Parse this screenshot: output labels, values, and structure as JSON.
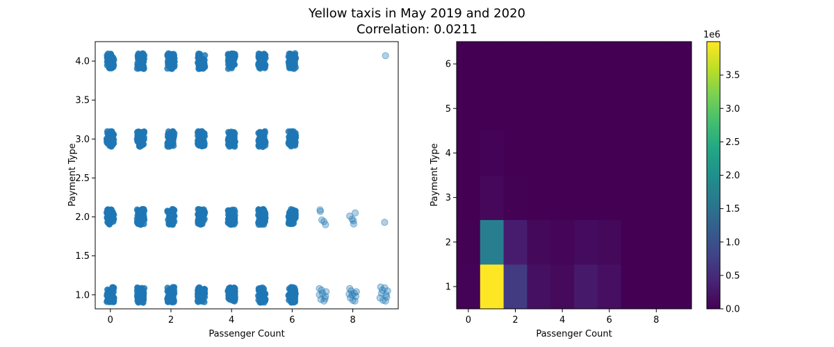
{
  "figure": {
    "title_line1": "Yellow taxis in May 2019 and 2020",
    "title_line2": "Correlation: 0.0211"
  },
  "chart_data": [
    {
      "type": "scatter",
      "xlabel": "Passenger Count",
      "ylabel": "Payment Type",
      "xlim": [
        -0.5,
        9.5
      ],
      "ylim": [
        0.82,
        4.25
      ],
      "xticks": [
        "0",
        "2",
        "4",
        "6",
        "8"
      ],
      "xtick_values": [
        0,
        2,
        4,
        6,
        8
      ],
      "yticks": [
        "1.0",
        "1.5",
        "2.0",
        "2.5",
        "3.0",
        "3.5",
        "4.0"
      ],
      "ytick_values": [
        1.0,
        1.5,
        2.0,
        2.5,
        3.0,
        3.5,
        4.0
      ],
      "marker_color": "#1f77b4",
      "alpha": 0.35,
      "dense_clusters": [
        {
          "x": 0,
          "y": 1
        },
        {
          "x": 1,
          "y": 1
        },
        {
          "x": 2,
          "y": 1
        },
        {
          "x": 3,
          "y": 1
        },
        {
          "x": 4,
          "y": 1
        },
        {
          "x": 5,
          "y": 1
        },
        {
          "x": 6,
          "y": 1
        },
        {
          "x": 0,
          "y": 2
        },
        {
          "x": 1,
          "y": 2
        },
        {
          "x": 2,
          "y": 2
        },
        {
          "x": 3,
          "y": 2
        },
        {
          "x": 4,
          "y": 2
        },
        {
          "x": 5,
          "y": 2
        },
        {
          "x": 6,
          "y": 2
        },
        {
          "x": 0,
          "y": 3
        },
        {
          "x": 1,
          "y": 3
        },
        {
          "x": 2,
          "y": 3
        },
        {
          "x": 3,
          "y": 3
        },
        {
          "x": 4,
          "y": 3
        },
        {
          "x": 5,
          "y": 3
        },
        {
          "x": 6,
          "y": 3
        },
        {
          "x": 0,
          "y": 4
        },
        {
          "x": 1,
          "y": 4
        },
        {
          "x": 2,
          "y": 4
        },
        {
          "x": 3,
          "y": 4
        },
        {
          "x": 4,
          "y": 4
        },
        {
          "x": 5,
          "y": 4
        },
        {
          "x": 6,
          "y": 4
        }
      ],
      "sparse_points": [
        {
          "x": 6.9,
          "y": 1.08
        },
        {
          "x": 7.0,
          "y": 1.02
        },
        {
          "x": 7.1,
          "y": 0.98
        },
        {
          "x": 6.95,
          "y": 0.94
        },
        {
          "x": 7.05,
          "y": 0.92
        },
        {
          "x": 6.9,
          "y": 1.0
        },
        {
          "x": 7.12,
          "y": 1.04
        },
        {
          "x": 6.97,
          "y": 1.06
        },
        {
          "x": 7.08,
          "y": 0.95
        },
        {
          "x": 6.92,
          "y": 2.09
        },
        {
          "x": 6.93,
          "y": 2.07
        },
        {
          "x": 6.98,
          "y": 1.96
        },
        {
          "x": 7.05,
          "y": 1.94
        },
        {
          "x": 7.1,
          "y": 1.9
        },
        {
          "x": 7.9,
          "y": 1.08
        },
        {
          "x": 7.95,
          "y": 1.05
        },
        {
          "x": 8.05,
          "y": 1.02
        },
        {
          "x": 8.1,
          "y": 0.98
        },
        {
          "x": 7.92,
          "y": 0.96
        },
        {
          "x": 8.0,
          "y": 0.93
        },
        {
          "x": 8.07,
          "y": 0.92
        },
        {
          "x": 7.98,
          "y": 1.0
        },
        {
          "x": 8.12,
          "y": 1.04
        },
        {
          "x": 7.88,
          "y": 1.01
        },
        {
          "x": 7.9,
          "y": 2.01
        },
        {
          "x": 8.08,
          "y": 2.05
        },
        {
          "x": 7.98,
          "y": 1.97
        },
        {
          "x": 8.02,
          "y": 1.95
        },
        {
          "x": 8.03,
          "y": 1.91
        },
        {
          "x": 8.92,
          "y": 1.1
        },
        {
          "x": 9.05,
          "y": 1.09
        },
        {
          "x": 9.15,
          "y": 1.05
        },
        {
          "x": 8.95,
          "y": 1.02
        },
        {
          "x": 9.1,
          "y": 1.0
        },
        {
          "x": 8.9,
          "y": 0.96
        },
        {
          "x": 9.0,
          "y": 0.93
        },
        {
          "x": 9.08,
          "y": 0.92
        },
        {
          "x": 8.98,
          "y": 1.06
        },
        {
          "x": 9.12,
          "y": 0.97
        },
        {
          "x": 9.05,
          "y": 1.93
        },
        {
          "x": 9.08,
          "y": 4.07
        }
      ]
    },
    {
      "type": "heatmap",
      "xlabel": "Passenger Count",
      "ylabel": "Payment Type",
      "xlim": [
        -0.5,
        9.5
      ],
      "ylim": [
        0.5,
        6.5
      ],
      "xticks": [
        "0",
        "2",
        "4",
        "6",
        "8"
      ],
      "xtick_values": [
        0,
        2,
        4,
        6,
        8
      ],
      "yticks": [
        "1",
        "2",
        "3",
        "4",
        "5",
        "6"
      ],
      "ytick_values": [
        1,
        2,
        3,
        4,
        5,
        6
      ],
      "colormap": "viridis",
      "vmin": 0,
      "vmax": 4000000,
      "colorbar_multiplier": "1e6",
      "colorbar_ticks": [
        "0.0",
        "0.5",
        "1.0",
        "1.5",
        "2.0",
        "2.5",
        "3.0",
        "3.5"
      ],
      "colorbar_tick_values": [
        0.0,
        0.5,
        1.0,
        1.5,
        2.0,
        2.5,
        3.0,
        3.5
      ],
      "rows_y": [
        1,
        2,
        3,
        4,
        5,
        6
      ],
      "cols_x": [
        0,
        1,
        2,
        3,
        4,
        5,
        6,
        7,
        8,
        9
      ],
      "values": [
        [
          20000,
          4000000,
          700000,
          180000,
          100000,
          280000,
          170000,
          50,
          60,
          40
        ],
        [
          10000,
          1700000,
          320000,
          90000,
          50000,
          120000,
          90000,
          20,
          30,
          5
        ],
        [
          0,
          80000,
          15000,
          4000,
          2500,
          3000,
          2000,
          0,
          0,
          0
        ],
        [
          0,
          20000,
          4000,
          1500,
          800,
          1000,
          800,
          0,
          0,
          3
        ],
        [
          0,
          0,
          0,
          0,
          0,
          0,
          0,
          0,
          0,
          0
        ],
        [
          0,
          0,
          0,
          0,
          0,
          0,
          0,
          0,
          0,
          0
        ]
      ]
    }
  ]
}
